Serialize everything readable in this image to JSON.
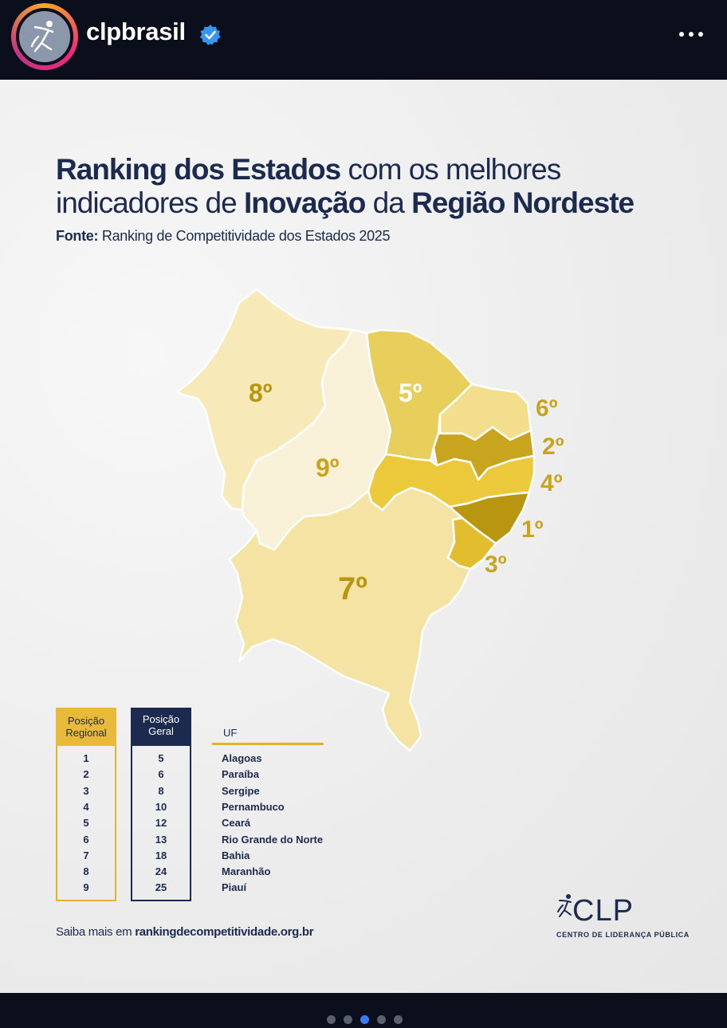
{
  "header": {
    "username": "clpbrasil",
    "avatar_icon": "clp-runner-logo-icon",
    "verified_icon": "verified-badge-icon",
    "more_icon": "more-options-icon"
  },
  "post": {
    "title_parts": [
      {
        "text": "Ranking dos Estados",
        "bold": true
      },
      {
        "text": " com os melhores indicadores de ",
        "bold": false
      },
      {
        "text": "Inovação",
        "bold": true
      },
      {
        "text": " da ",
        "bold": false
      },
      {
        "text": "Região Nordeste",
        "bold": true
      }
    ],
    "source_label": "Fonte:",
    "source_text": " Ranking de Competitividade dos Estados 2025",
    "map_labels": {
      "maranhao": "8º",
      "ceara": "5º",
      "piaui": "9º",
      "rio_grande_do_norte": "6º",
      "paraiba": "2º",
      "pernambuco": "4º",
      "alagoas": "1º",
      "sergipe": "3º",
      "bahia": "7º"
    },
    "table": {
      "col_regional": "Posição\nRegional",
      "col_geral": "Posição\nGeral",
      "col_uf": "UF",
      "rows": [
        {
          "regional": "1",
          "geral": "5",
          "uf": "Alagoas"
        },
        {
          "regional": "2",
          "geral": "6",
          "uf": "Paraíba"
        },
        {
          "regional": "3",
          "geral": "8",
          "uf": "Sergipe"
        },
        {
          "regional": "4",
          "geral": "10",
          "uf": "Pernambuco"
        },
        {
          "regional": "5",
          "geral": "12",
          "uf": "Ceará"
        },
        {
          "regional": "6",
          "geral": "13",
          "uf": "Rio Grande do Norte"
        },
        {
          "regional": "7",
          "geral": "18",
          "uf": "Bahia"
        },
        {
          "regional": "8",
          "geral": "24",
          "uf": "Maranhão"
        },
        {
          "regional": "9",
          "geral": "25",
          "uf": "Piauí"
        }
      ]
    },
    "footer_prefix": "Saiba mais em ",
    "footer_link": "rankingdecompetitividade.org.br",
    "logo_text": "CLP",
    "logo_subtitle": "CENTRO DE LIDERANÇA PÚBLICA"
  },
  "carousel": {
    "count": 5,
    "active": 3
  },
  "colors": {
    "navy": "#1b2a4e",
    "gold_dark": "#b8960f",
    "gold": "#e9c840",
    "gold_light": "#f3de8e",
    "cream": "#f8ecc4",
    "background": "#efefef",
    "bar": "#0b0f1c"
  }
}
